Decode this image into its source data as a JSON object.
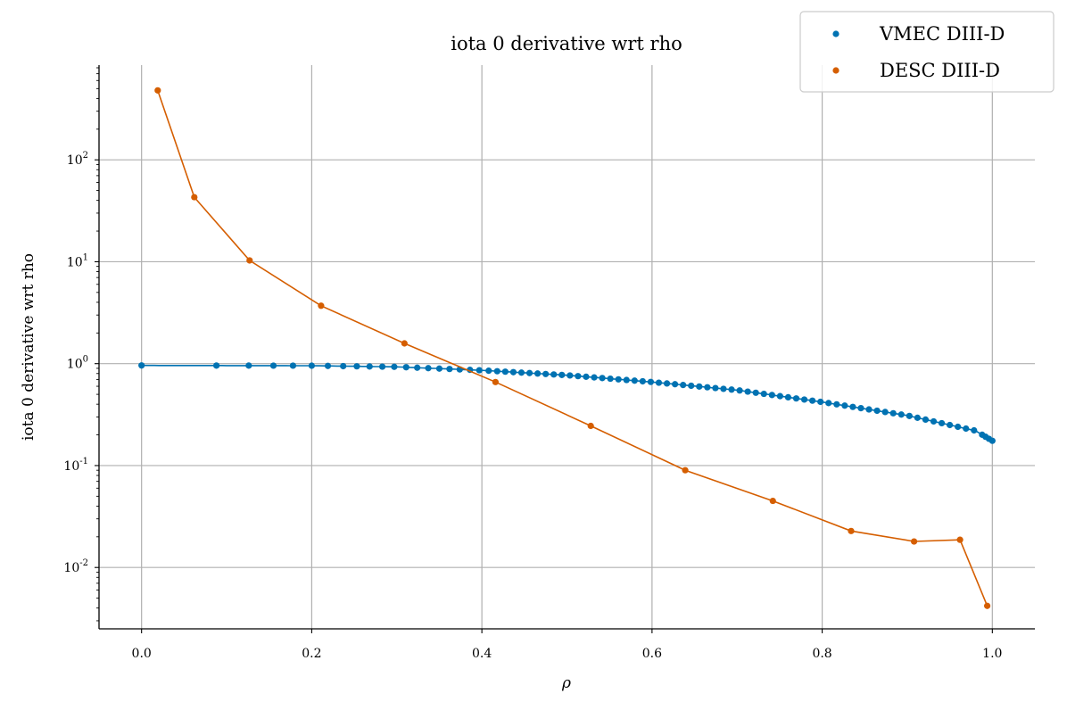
{
  "chart_data": {
    "type": "line",
    "title": "iota 0 derivative wrt rho",
    "xlabel": "ρ",
    "ylabel": "iota 0 derivative wrt rho",
    "xlim": [
      -0.05,
      1.05
    ],
    "ylim": [
      0.0025,
      850
    ],
    "yscale": "log",
    "grid": true,
    "legend_position": "top-right",
    "x_ticks": [
      0.0,
      0.2,
      0.4,
      0.6,
      0.8,
      1.0
    ],
    "x_tick_labels": [
      "0.0",
      "0.2",
      "0.4",
      "0.6",
      "0.8",
      "1.0"
    ],
    "y_ticks": [
      0.01,
      0.1,
      1,
      10,
      100
    ],
    "y_tick_labels": [
      {
        "base": "10",
        "exp": "-2"
      },
      {
        "base": "10",
        "exp": "-1"
      },
      {
        "base": "10",
        "exp": "0"
      },
      {
        "base": "10",
        "exp": "1"
      },
      {
        "base": "10",
        "exp": "2"
      }
    ],
    "series": [
      {
        "name": "VMEC DIII-D",
        "color": "#0072B2",
        "style": "dense-markers",
        "knots": [
          [
            0.0,
            0.96
          ],
          [
            0.2,
            0.955
          ],
          [
            0.3,
            0.93
          ],
          [
            0.4,
            0.86
          ],
          [
            0.5,
            0.77
          ],
          [
            0.6,
            0.66
          ],
          [
            0.7,
            0.55
          ],
          [
            0.8,
            0.42
          ],
          [
            0.9,
            0.31
          ],
          [
            0.95,
            0.25
          ],
          [
            0.98,
            0.22
          ],
          [
            1.0,
            0.175
          ]
        ],
        "marker_x": [
          0.0,
          0.088,
          0.126,
          0.155,
          0.178,
          0.2,
          0.219,
          0.237,
          0.253,
          0.268,
          0.283,
          0.297,
          0.311,
          0.324,
          0.337,
          0.35,
          0.362,
          0.374,
          0.386,
          0.397,
          0.408
        ]
      },
      {
        "name": "DESC DIII-D",
        "color": "#D55E00",
        "style": "line-markers",
        "x": [
          0.019,
          0.062,
          0.127,
          0.211,
          0.309,
          0.416,
          0.528,
          0.639,
          0.742,
          0.834,
          0.908,
          0.962,
          0.994
        ],
        "y": [
          480,
          43,
          10.3,
          3.7,
          1.58,
          0.66,
          0.245,
          0.09,
          0.045,
          0.0228,
          0.018,
          0.0187,
          0.0042
        ]
      }
    ]
  }
}
